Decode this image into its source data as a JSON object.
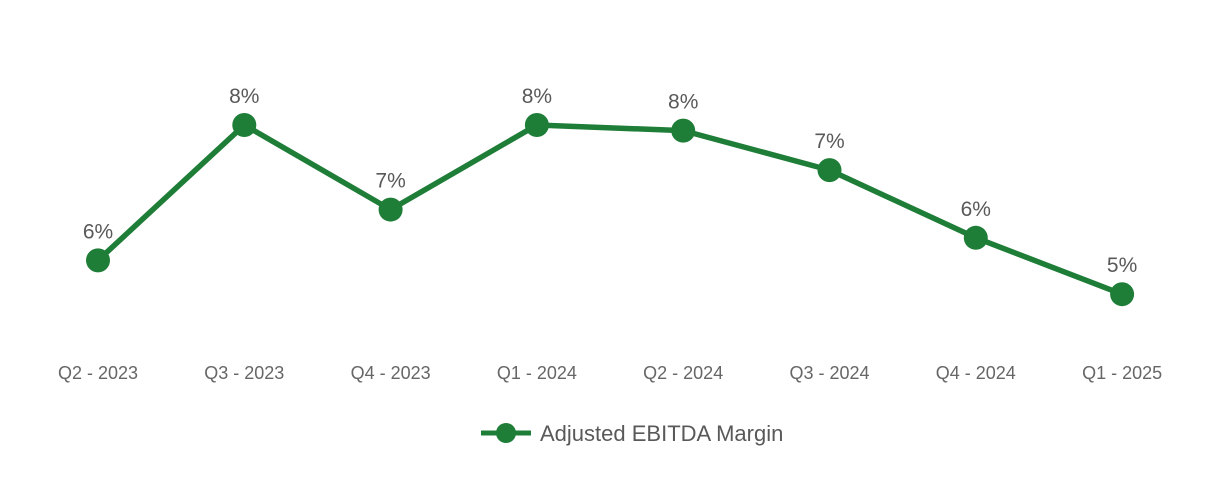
{
  "chart": {
    "legend_label": "Adjusted EBITDA Margin"
  },
  "chart_data": {
    "type": "line",
    "title": "",
    "xlabel": "",
    "ylabel": "",
    "unit": "%",
    "categories": [
      "Q2 - 2023",
      "Q3 - 2023",
      "Q4 - 2023",
      "Q1 - 2024",
      "Q2 - 2024",
      "Q3 - 2024",
      "Q4 - 2024",
      "Q1 - 2025"
    ],
    "series": [
      {
        "name": "Adjusted EBITDA Margin",
        "values": [
          6,
          8,
          7,
          8,
          8,
          7,
          6,
          5
        ],
        "estimated_precise_values": [
          5.6,
          8.0,
          6.5,
          8.0,
          7.9,
          7.2,
          6.0,
          5.0
        ],
        "data_labels": [
          "6%",
          "8%",
          "7%",
          "8%",
          "8%",
          "7%",
          "6%",
          "5%"
        ]
      }
    ],
    "ylim": [
      4.5,
      9
    ],
    "grid": false,
    "axes_visible": false,
    "legend_position": "bottom-center",
    "colors": {
      "series": "#1E7D37",
      "data_label": "#595959",
      "axis_label": "#666666",
      "legend_text": "#595959",
      "background": "#FFFFFF"
    }
  }
}
